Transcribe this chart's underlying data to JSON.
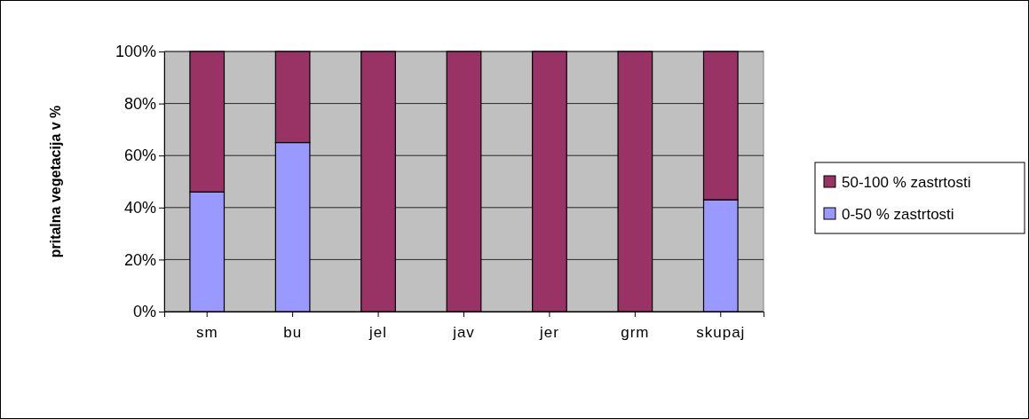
{
  "chart_data": {
    "type": "bar",
    "stacked": true,
    "ylabel": "pritalna vegetacija v %",
    "categories": [
      "sm",
      "bu",
      "jel",
      "jav",
      "jer",
      "grm",
      "skupaj"
    ],
    "series": [
      {
        "name": "0-50 % zastrtosti",
        "color": "#9999ff",
        "values": [
          46,
          65,
          0,
          0,
          0,
          0,
          43
        ]
      },
      {
        "name": "50-100 % zastrtosti",
        "color": "#993366",
        "values": [
          54,
          35,
          100,
          100,
          100,
          100,
          57
        ]
      }
    ],
    "ylim": [
      0,
      100
    ],
    "yticks": [
      {
        "value": 0,
        "label": "0%"
      },
      {
        "value": 20,
        "label": "20%"
      },
      {
        "value": 40,
        "label": "40%"
      },
      {
        "value": 60,
        "label": "60%"
      },
      {
        "value": 80,
        "label": "80%"
      },
      {
        "value": 100,
        "label": "100%"
      }
    ],
    "grid": "y",
    "legend": "right"
  }
}
